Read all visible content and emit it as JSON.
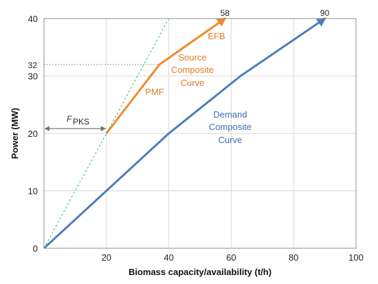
{
  "chart_data": {
    "type": "line",
    "title": "",
    "xlabel": "Biomass capacity/availability  (t/h)",
    "ylabel": "Power (MW)",
    "xlim": [
      0,
      100
    ],
    "ylim": [
      0,
      40
    ],
    "xticks": [
      0,
      20,
      40,
      60,
      80,
      100
    ],
    "yticks": [
      0,
      10,
      20,
      30,
      40
    ],
    "x_tick_labels": [
      "",
      "20",
      "40",
      "60",
      "80",
      "100"
    ],
    "y_tick_labels": [
      "0",
      "10",
      "20",
      "30",
      "40"
    ],
    "grid": true,
    "series": [
      {
        "name": "Demand Composite Curve",
        "color": "#4A7EBB",
        "x": [
          0,
          40,
          63,
          90
        ],
        "y": [
          0,
          20,
          30,
          40
        ]
      },
      {
        "name": "Source Composite Curve",
        "color": "#F08A2B",
        "x": [
          20,
          37,
          58
        ],
        "y": [
          20,
          32,
          40
        ]
      },
      {
        "name": "",
        "style": "dashed",
        "color": "#3CB371",
        "x": [
          0,
          40
        ],
        "y": [
          0,
          40
        ]
      }
    ],
    "annotations": {
      "end_label_source": "58",
      "end_label_demand": "90",
      "y_marker": "32",
      "efb": "EFB",
      "pmf": "PMF",
      "source_lines": [
        "Source",
        "Composite",
        "Curve"
      ],
      "demand_lines": [
        "Demand",
        "Composite",
        "Curve"
      ],
      "fpks_main": "F",
      "fpks_sub": "PKS"
    }
  }
}
